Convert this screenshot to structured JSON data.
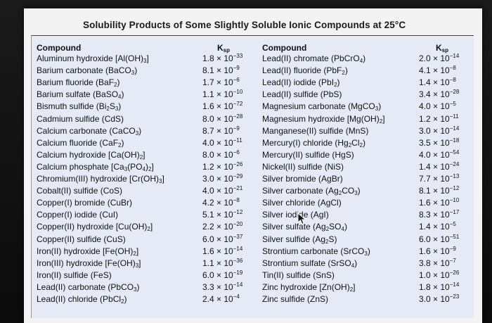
{
  "title": "Solubility Products of Some Slightly Soluble Ionic Compounds at 25°C",
  "headers": {
    "compound_left": "Compound",
    "ksp_left": "K",
    "ksp_left_sub": "sp",
    "compound_right": "Compound",
    "ksp_right": "K",
    "ksp_right_sub": "sp"
  },
  "left_rows": [
    {
      "compound": "Aluminum hydroxide [Al(OH)_3]",
      "coef": "1.8",
      "exp": "-33"
    },
    {
      "compound": "Barium carbonate (BaCO_3)",
      "coef": "8.1",
      "exp": "-9"
    },
    {
      "compound": "Barium fluoride (BaF_2)",
      "coef": "1.7",
      "exp": "-6"
    },
    {
      "compound": "Barium sulfate (BaSO_4)",
      "coef": "1.1",
      "exp": "-10"
    },
    {
      "compound": "Bismuth sulfide (Bi_2S_3)",
      "coef": "1.6",
      "exp": "-72"
    },
    {
      "compound": "Cadmium sulfide (CdS)",
      "coef": "8.0",
      "exp": "-28"
    },
    {
      "compound": "Calcium carbonate (CaCO_3)",
      "coef": "8.7",
      "exp": "-9"
    },
    {
      "compound": "Calcium fluoride (CaF_2)",
      "coef": "4.0",
      "exp": "-11"
    },
    {
      "compound": "Calcium hydroxide [Ca(OH)_2]",
      "coef": "8.0",
      "exp": "-6"
    },
    {
      "compound": "Calcium phosphate [Ca_3(PO_4)_2]",
      "coef": "1.2",
      "exp": "-26"
    },
    {
      "compound": "Chromium(III) hydroxide [Cr(OH)_3]",
      "coef": "3.0",
      "exp": "-29"
    },
    {
      "compound": "Cobalt(II) sulfide (CoS)",
      "coef": "4.0",
      "exp": "-21"
    },
    {
      "compound": "Copper(I) bromide (CuBr)",
      "coef": "4.2",
      "exp": "-8"
    },
    {
      "compound": "Copper(I) iodide (CuI)",
      "coef": "5.1",
      "exp": "-12"
    },
    {
      "compound": "Copper(II) hydroxide [Cu(OH)_2]",
      "coef": "2.2",
      "exp": "-20"
    },
    {
      "compound": "Copper(II) sulfide (CuS)",
      "coef": "6.0",
      "exp": "-37"
    },
    {
      "compound": "Iron(II) hydroxide [Fe(OH)_2]",
      "coef": "1.6",
      "exp": "-14"
    },
    {
      "compound": "Iron(III) hydroxide [Fe(OH)_3]",
      "coef": "1.1",
      "exp": "-36"
    },
    {
      "compound": "Iron(II) sulfide (FeS)",
      "coef": "6.0",
      "exp": "-19"
    },
    {
      "compound": "Lead(II) carbonate (PbCO_3)",
      "coef": "3.3",
      "exp": "-14"
    },
    {
      "compound": "Lead(II) chloride (PbCl_2)",
      "coef": "2.4",
      "exp": "-4"
    }
  ],
  "right_rows": [
    {
      "compound": "Lead(II) chromate (PbCrO_4)",
      "coef": "2.0",
      "exp": "-14"
    },
    {
      "compound": "Lead(II) fluoride (PbF_2)",
      "coef": "4.1",
      "exp": "-8"
    },
    {
      "compound": "Lead(II) iodide (PbI_2)",
      "coef": "1.4",
      "exp": "-8"
    },
    {
      "compound": "Lead(II) sulfide (PbS)",
      "coef": "3.4",
      "exp": "-28"
    },
    {
      "compound": "Magnesium carbonate (MgCO_3)",
      "coef": "4.0",
      "exp": "-5"
    },
    {
      "compound": "Magnesium hydroxide [Mg(OH)_2]",
      "coef": "1.2",
      "exp": "-11"
    },
    {
      "compound": "Manganese(II) sulfide (MnS)",
      "coef": "3.0",
      "exp": "-14"
    },
    {
      "compound": "Mercury(I) chloride (Hg_2Cl_2)",
      "coef": "3.5",
      "exp": "-18"
    },
    {
      "compound": "Mercury(II) sulfide (HgS)",
      "coef": "4.0",
      "exp": "-54"
    },
    {
      "compound": "Nickel(II) sulfide (NiS)",
      "coef": "1.4",
      "exp": "-24"
    },
    {
      "compound": "Silver bromide (AgBr)",
      "coef": "7.7",
      "exp": "-13"
    },
    {
      "compound": "Silver carbonate (Ag_2CO_3)",
      "coef": "8.1",
      "exp": "-12"
    },
    {
      "compound": "Silver chloride (AgCl)",
      "coef": "1.6",
      "exp": "-10"
    },
    {
      "compound": "Silver iodide (AgI)",
      "coef": "8.3",
      "exp": "-17"
    },
    {
      "compound": "Silver sulfate (Ag_2SO_4)",
      "coef": "1.4",
      "exp": "-5"
    },
    {
      "compound": "Silver sulfide (Ag_2S)",
      "coef": "6.0",
      "exp": "-51"
    },
    {
      "compound": "Strontium carbonate (SrCO_3)",
      "coef": "1.6",
      "exp": "-9"
    },
    {
      "compound": "Strontium sulfate (SrSO_4)",
      "coef": "3.8",
      "exp": "-7"
    },
    {
      "compound": "Tin(II) sulfide (SnS)",
      "coef": "1.0",
      "exp": "-26"
    },
    {
      "compound": "Zinc hydroxide [Zn(OH)_2]",
      "coef": "1.8",
      "exp": "-14"
    },
    {
      "compound": "Zinc sulfide (ZnS)",
      "coef": "3.0",
      "exp": "-23"
    }
  ],
  "cursor_icon": "mouse-pointer-icon"
}
